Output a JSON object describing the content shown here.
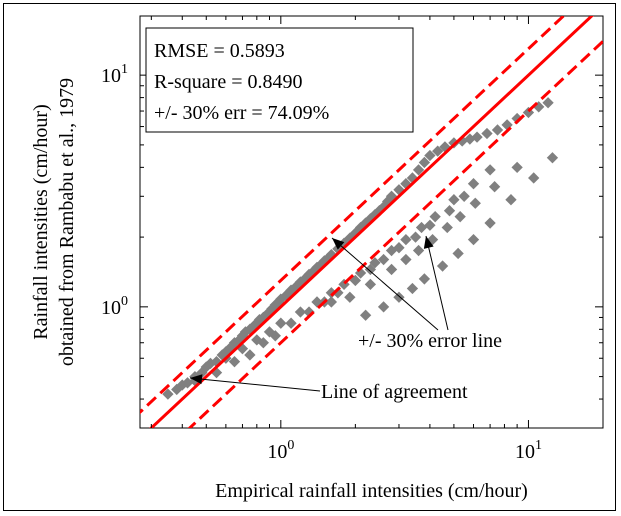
{
  "chart_data": {
    "type": "scatter",
    "title": "",
    "xlabel": "Empirical rainfall intensities (cm/hour)",
    "ylabel_line1": "Rainfall intensities (cm/hour)",
    "ylabel_line2": "obtained from Rambabu et al., 1979",
    "xscale": "log",
    "yscale": "log",
    "xlim": [
      0.27,
      20
    ],
    "ylim": [
      0.3,
      18
    ],
    "x_ticks": [
      {
        "base": "10",
        "exp": "0",
        "value": 1
      },
      {
        "base": "10",
        "exp": "1",
        "value": 10
      }
    ],
    "y_ticks": [
      {
        "base": "10",
        "exp": "0",
        "value": 1
      },
      {
        "base": "10",
        "exp": "1",
        "value": 10
      }
    ],
    "stats_box": {
      "line1": "RMSE = 0.5893",
      "line2": "R-square = 0.8490",
      "line3": "+/- 30% err = 74.09%"
    },
    "annotations": {
      "error_line": "+/- 30% error line",
      "agreement_line": "Line of agreement"
    },
    "reference_lines": {
      "agreement": {
        "slope": 1.0,
        "color": "#ff0000",
        "style": "solid"
      },
      "upper_error": {
        "factor": 1.3,
        "color": "#ff0000",
        "style": "dashed"
      },
      "lower_error": {
        "factor": 0.7,
        "color": "#ff0000",
        "style": "dashed"
      }
    },
    "point_color": "#808080",
    "series": [
      {
        "x": [
          0.35,
          0.38,
          0.4,
          0.42,
          0.45,
          0.48,
          0.5,
          0.52,
          0.55,
          0.58,
          0.6,
          0.62,
          0.65,
          0.68,
          0.7,
          0.72,
          0.75,
          0.78,
          0.8,
          0.82,
          0.85,
          0.88,
          0.9,
          0.92,
          0.95,
          0.98,
          1.0,
          1.05,
          1.1,
          1.15,
          1.2,
          1.25,
          1.3,
          1.35,
          1.4,
          1.45,
          1.5,
          1.55,
          1.6,
          1.7,
          1.8,
          1.9,
          2.0,
          2.1,
          2.2,
          2.3,
          2.4,
          2.5,
          2.6,
          2.7,
          2.8,
          3.0,
          3.2,
          3.4,
          3.6,
          3.8,
          4.0,
          4.3,
          4.6,
          5.0,
          5.4,
          5.8,
          6.2,
          6.8,
          7.5,
          8.2,
          9.0,
          10.0,
          11.0,
          12.0,
          0.45,
          0.55,
          0.65,
          0.75,
          0.85,
          0.95,
          1.1,
          1.3,
          1.5,
          1.7,
          2.0,
          2.3,
          2.6,
          3.0,
          3.5,
          4.0,
          4.8,
          5.5,
          0.6,
          0.7,
          0.8,
          0.9,
          1.0,
          1.2,
          1.4,
          1.6,
          1.8,
          2.1,
          2.4,
          2.8,
          3.2,
          3.7,
          4.2,
          5.0,
          6.0,
          7.0,
          2.2,
          2.6,
          3.0,
          3.4,
          3.8,
          4.5,
          5.2,
          6.0,
          7.0,
          8.5,
          10.5,
          12.5,
          1.6,
          1.9,
          2.3,
          2.8,
          3.2,
          3.6,
          4.1,
          4.7,
          5.3,
          6.1,
          7.3,
          9.0
        ],
        "y": [
          0.42,
          0.44,
          0.46,
          0.47,
          0.5,
          0.52,
          0.55,
          0.57,
          0.58,
          0.62,
          0.64,
          0.66,
          0.7,
          0.72,
          0.75,
          0.78,
          0.8,
          0.83,
          0.85,
          0.88,
          0.9,
          0.93,
          0.95,
          0.98,
          1.02,
          1.05,
          1.08,
          1.12,
          1.18,
          1.22,
          1.28,
          1.32,
          1.38,
          1.42,
          1.48,
          1.52,
          1.58,
          1.62,
          1.68,
          1.78,
          1.88,
          1.98,
          2.08,
          2.2,
          2.3,
          2.4,
          2.5,
          2.6,
          2.7,
          2.85,
          3.0,
          3.2,
          3.4,
          3.6,
          3.9,
          4.2,
          4.5,
          4.7,
          4.9,
          5.1,
          5.2,
          5.3,
          5.4,
          5.6,
          5.8,
          6.1,
          6.5,
          6.9,
          7.3,
          7.6,
          0.48,
          0.52,
          0.58,
          0.62,
          0.7,
          0.75,
          0.85,
          0.95,
          1.05,
          1.15,
          1.3,
          1.45,
          1.6,
          1.8,
          2.0,
          2.25,
          2.6,
          3.0,
          0.6,
          0.66,
          0.72,
          0.78,
          0.85,
          0.95,
          1.05,
          1.15,
          1.25,
          1.4,
          1.55,
          1.75,
          1.95,
          2.2,
          2.45,
          2.9,
          3.4,
          3.9,
          0.92,
          1.0,
          1.1,
          1.2,
          1.32,
          1.5,
          1.7,
          1.95,
          2.3,
          2.9,
          3.6,
          4.4,
          1.05,
          1.1,
          1.25,
          1.45,
          1.6,
          1.75,
          1.95,
          2.2,
          2.45,
          2.8,
          3.3,
          4.0
        ]
      }
    ]
  }
}
